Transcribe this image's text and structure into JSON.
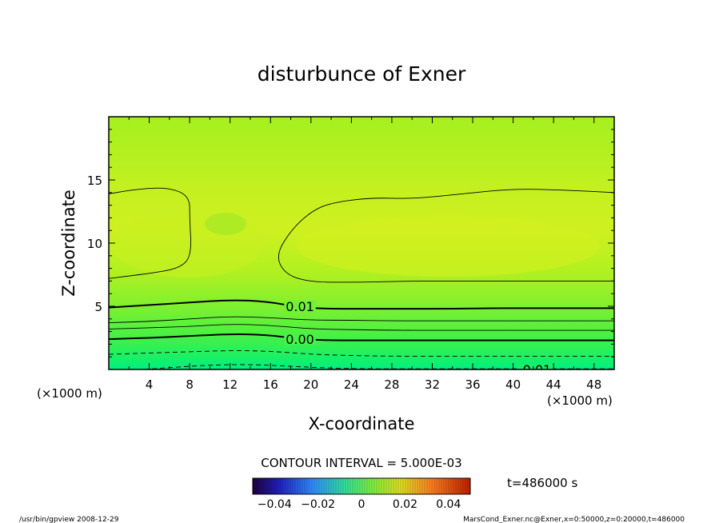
{
  "chart_data": {
    "type": "heatmap",
    "title": "disturbunce of Exner",
    "xlabel": "X-coordinate",
    "ylabel": "Z-coordinate",
    "x_unit": "(×1000 m)",
    "y_unit": "(×1000 m)",
    "xlim": [
      0,
      50
    ],
    "ylim": [
      0,
      20
    ],
    "x_ticks": [
      4,
      8,
      12,
      16,
      20,
      24,
      28,
      32,
      36,
      40,
      44,
      48
    ],
    "y_ticks": [
      5,
      10,
      15
    ],
    "contour_interval_text": "CONTOUR INTERVAL = 5.000E-03",
    "contour_labels": [
      {
        "text": "0.01",
        "x": 17.5,
        "z": 5.0
      },
      {
        "text": "0.00",
        "x": 17.5,
        "z": 2.4
      },
      {
        "text": "-0.01",
        "x": 40.5,
        "z": 0.0
      }
    ],
    "contours": [
      {
        "level": 0.025,
        "style": "thin",
        "points": [
          [
            0,
            13.9
          ],
          [
            3,
            14.3
          ],
          [
            6,
            14.4
          ],
          [
            8,
            13.7
          ],
          [
            8,
            12
          ],
          [
            8.2,
            9
          ],
          [
            7,
            8
          ],
          [
            4,
            7.6
          ],
          [
            2,
            7.4
          ],
          [
            0,
            7.2
          ]
        ]
      },
      {
        "level": 0.025,
        "style": "thin",
        "points": [
          [
            50,
            14.0
          ],
          [
            45,
            14.2
          ],
          [
            40,
            14.3
          ],
          [
            35,
            13.9
          ],
          [
            30,
            13.5
          ],
          [
            26,
            13.6
          ],
          [
            22,
            13.2
          ],
          [
            20,
            12.5
          ],
          [
            18,
            11
          ],
          [
            16.5,
            9
          ],
          [
            17.5,
            7.5
          ],
          [
            20,
            6.9
          ],
          [
            25,
            6.9
          ],
          [
            30,
            7.0
          ],
          [
            35,
            7.0
          ],
          [
            40,
            7.0
          ],
          [
            45,
            7.0
          ],
          [
            50,
            7.0
          ]
        ]
      },
      {
        "level": 0.015,
        "style": "thin",
        "points": [
          [
            0,
            3.7
          ],
          [
            4,
            3.8
          ],
          [
            8,
            4.0
          ],
          [
            12,
            4.2
          ],
          [
            16,
            4.1
          ],
          [
            20,
            3.9
          ],
          [
            24,
            3.9
          ],
          [
            28,
            3.85
          ],
          [
            32,
            3.85
          ],
          [
            36,
            3.85
          ],
          [
            40,
            3.85
          ],
          [
            44,
            3.85
          ],
          [
            48,
            3.85
          ],
          [
            50,
            3.85
          ]
        ]
      },
      {
        "level": 0.01,
        "style": "thick",
        "points": [
          [
            0,
            4.9
          ],
          [
            4,
            5.1
          ],
          [
            8,
            5.3
          ],
          [
            12,
            5.5
          ],
          [
            15.5,
            5.4
          ],
          [
            19,
            4.9
          ],
          [
            22,
            4.8
          ],
          [
            26,
            4.8
          ],
          [
            30,
            4.8
          ],
          [
            34,
            4.8
          ],
          [
            38,
            4.85
          ],
          [
            42,
            4.85
          ],
          [
            46,
            4.85
          ],
          [
            50,
            4.85
          ]
        ]
      },
      {
        "level": 0.005,
        "style": "thin",
        "points": [
          [
            0,
            3.2
          ],
          [
            4,
            3.3
          ],
          [
            8,
            3.4
          ],
          [
            12,
            3.6
          ],
          [
            16,
            3.5
          ],
          [
            20,
            3.2
          ],
          [
            24,
            3.15
          ],
          [
            28,
            3.1
          ],
          [
            32,
            3.1
          ],
          [
            36,
            3.1
          ],
          [
            40,
            3.1
          ],
          [
            44,
            3.1
          ],
          [
            48,
            3.1
          ],
          [
            50,
            3.1
          ]
        ]
      },
      {
        "level": 0.0,
        "style": "thick",
        "points": [
          [
            0,
            2.4
          ],
          [
            4,
            2.5
          ],
          [
            8,
            2.65
          ],
          [
            12,
            2.8
          ],
          [
            15.5,
            2.75
          ],
          [
            19,
            2.4
          ],
          [
            22,
            2.3
          ],
          [
            26,
            2.3
          ],
          [
            30,
            2.3
          ],
          [
            34,
            2.3
          ],
          [
            38,
            2.3
          ],
          [
            42,
            2.3
          ],
          [
            46,
            2.3
          ],
          [
            50,
            2.3
          ]
        ]
      },
      {
        "level": -0.005,
        "style": "dashed",
        "points": [
          [
            0,
            1.2
          ],
          [
            4,
            1.3
          ],
          [
            8,
            1.4
          ],
          [
            12,
            1.5
          ],
          [
            16,
            1.45
          ],
          [
            20,
            1.2
          ],
          [
            24,
            1.1
          ],
          [
            28,
            1.05
          ],
          [
            32,
            1.05
          ],
          [
            36,
            1.05
          ],
          [
            40,
            1.05
          ],
          [
            44,
            1.05
          ],
          [
            48,
            1.05
          ],
          [
            50,
            1.05
          ]
        ]
      },
      {
        "level": -0.01,
        "style": "dashed",
        "points": [
          [
            3.5,
            0.0
          ],
          [
            6,
            0.15
          ],
          [
            10,
            0.35
          ],
          [
            14,
            0.4
          ],
          [
            18,
            0.25
          ],
          [
            22,
            0.1
          ],
          [
            26,
            0.05
          ],
          [
            30,
            0.05
          ],
          [
            34,
            0.05
          ],
          [
            38,
            0.05
          ],
          [
            42,
            0.05
          ],
          [
            46,
            0.05
          ],
          [
            50,
            0.05
          ]
        ]
      }
    ],
    "colorbar": {
      "vmin": -0.05,
      "vmax": 0.05,
      "tick_values": [
        -0.04,
        -0.02,
        0,
        0.02,
        0.04
      ],
      "tick_labels": [
        "−0.04",
        "−0.02",
        "0",
        "0.02",
        "0.04"
      ]
    }
  },
  "info": {
    "time_label": "t=486000  s",
    "footer_left": "/usr/bin/gpview   2008-12-29",
    "footer_right": "MarsCond_Exner.nc@Exner,x=0:50000,z=0:20000,t=486000"
  },
  "colors": {
    "low": "#00f080",
    "mid": "#a8f020",
    "high": "#d8f020",
    "line": "#000000"
  }
}
